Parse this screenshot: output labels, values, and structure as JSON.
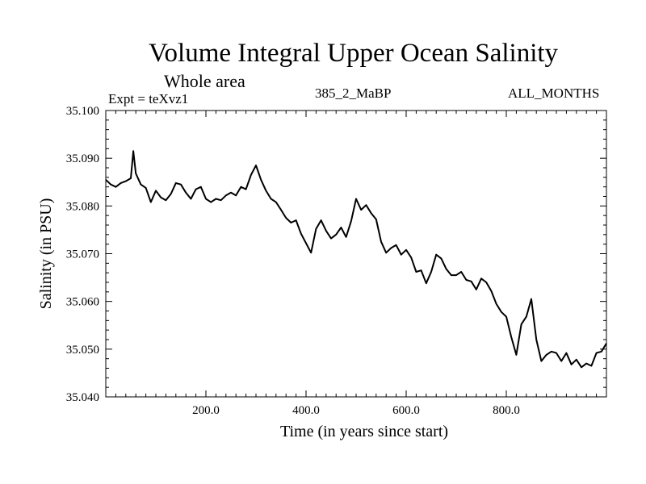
{
  "header": {
    "title": "Volume Integral Upper Ocean Salinity",
    "subtitle": "Whole area",
    "expt": "Expt = teXvz1",
    "run": "385_2_MaBP",
    "months": "ALL_MONTHS"
  },
  "chart_data": {
    "type": "line",
    "title": "Volume Integral Upper Ocean Salinity",
    "xlabel": "Time (in years since start)",
    "ylabel": "Salinity (in PSU)",
    "xlim": [
      0,
      1000
    ],
    "ylim": [
      35.04,
      35.1
    ],
    "x_ticks": [
      200,
      400,
      600,
      800
    ],
    "x_tick_labels": [
      "200.0",
      "400.0",
      "600.0",
      "800.0"
    ],
    "y_ticks": [
      35.04,
      35.05,
      35.06,
      35.07,
      35.08,
      35.09,
      35.1
    ],
    "y_tick_labels": [
      "35.040",
      "35.050",
      "35.060",
      "35.070",
      "35.080",
      "35.090",
      "35.100"
    ],
    "line_color": "#000000",
    "series": [
      {
        "name": "salinity",
        "x": [
          0,
          10,
          20,
          30,
          40,
          50,
          55,
          60,
          70,
          80,
          90,
          100,
          110,
          120,
          130,
          140,
          150,
          160,
          170,
          180,
          190,
          200,
          210,
          220,
          230,
          240,
          250,
          260,
          270,
          280,
          290,
          300,
          310,
          320,
          330,
          340,
          350,
          360,
          370,
          380,
          390,
          400,
          410,
          420,
          430,
          440,
          450,
          460,
          470,
          480,
          490,
          500,
          510,
          520,
          530,
          540,
          550,
          560,
          570,
          580,
          590,
          600,
          610,
          620,
          630,
          640,
          650,
          660,
          670,
          680,
          690,
          700,
          710,
          720,
          730,
          740,
          750,
          760,
          770,
          780,
          790,
          800,
          810,
          820,
          830,
          840,
          850,
          860,
          870,
          880,
          890,
          900,
          910,
          920,
          930,
          940,
          950,
          960,
          970,
          980,
          990,
          1000
        ],
        "values": [
          35.0855,
          35.0845,
          35.084,
          35.0848,
          35.0852,
          35.0858,
          35.0915,
          35.0868,
          35.0845,
          35.0838,
          35.0808,
          35.0832,
          35.0818,
          35.0812,
          35.0825,
          35.0848,
          35.0845,
          35.0828,
          35.0815,
          35.0835,
          35.084,
          35.0815,
          35.0808,
          35.0815,
          35.0812,
          35.0822,
          35.0828,
          35.0822,
          35.084,
          35.0835,
          35.0865,
          35.0885,
          35.0855,
          35.0832,
          35.0815,
          35.0808,
          35.0792,
          35.0775,
          35.0765,
          35.077,
          35.0742,
          35.0722,
          35.0702,
          35.0752,
          35.077,
          35.0748,
          35.0732,
          35.074,
          35.0755,
          35.0735,
          35.0768,
          35.0815,
          35.0792,
          35.0802,
          35.0785,
          35.0772,
          35.0725,
          35.0702,
          35.0712,
          35.0718,
          35.0698,
          35.0708,
          35.0692,
          35.0662,
          35.0665,
          35.0638,
          35.0662,
          35.0698,
          35.069,
          35.0668,
          35.0655,
          35.0655,
          35.0662,
          35.0645,
          35.0642,
          35.0625,
          35.0648,
          35.064,
          35.0622,
          35.0595,
          35.0578,
          35.0568,
          35.0525,
          35.0488,
          35.0552,
          35.0568,
          35.0605,
          35.052,
          35.0475,
          35.0488,
          35.0495,
          35.0492,
          35.0475,
          35.0492,
          35.0468,
          35.0478,
          35.0462,
          35.047,
          35.0465,
          35.0492,
          35.0495,
          35.0512
        ]
      }
    ]
  }
}
